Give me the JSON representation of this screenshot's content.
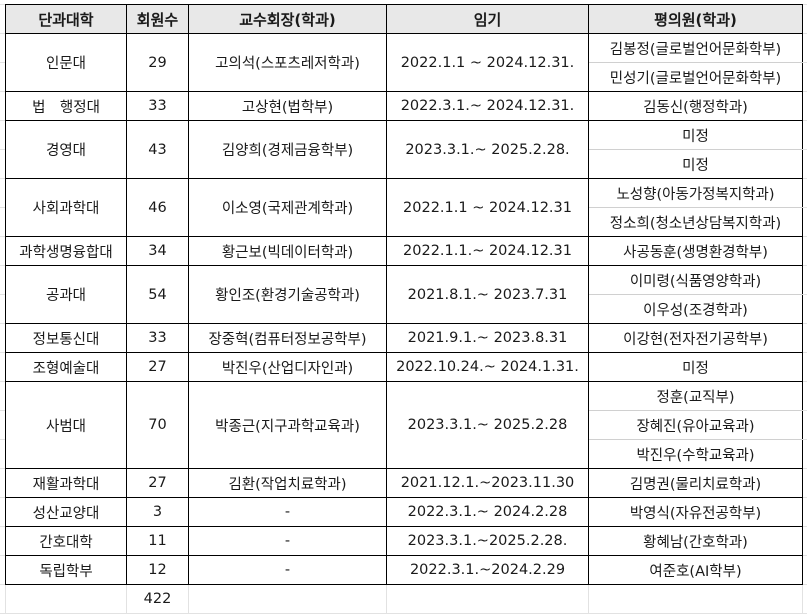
{
  "headers": [
    "단과대학",
    "회원수",
    "교수회장(학과)",
    "임기",
    "평의원(학과)"
  ],
  "rows": [
    {
      "college": "인문대",
      "members": "29",
      "president": "고의석(스포츠레저학과)",
      "term": "2022.1.1 ~ 2024.12.31.",
      "reps": [
        "김봉정(글로벌언어문화학부)",
        "민성기(글로벌언어문화학부)"
      ]
    },
    {
      "college": "법　행정대",
      "members": "33",
      "president": "고상현(법학부)",
      "term": "2022.3.1.~ 2024.12.31.",
      "reps": [
        "김동신(행정학과)"
      ]
    },
    {
      "college": "경영대",
      "members": "43",
      "president": "김양희(경제금융학부)",
      "term": "2023.3.1.~ 2025.2.28.",
      "reps": [
        "미정",
        "미정"
      ]
    },
    {
      "college": "사회과학대",
      "members": "46",
      "president": "이소영(국제관계학과)",
      "term": "2022.1.1 ~ 2024.12.31",
      "reps": [
        "노성향(아동가정복지학과)",
        "정소희(청소년상담복지학과)"
      ]
    },
    {
      "college": "과학생명융합대",
      "members": "34",
      "president": "황근보(빅데이터학과)",
      "term": "2022.1.1.~ 2024.12.31",
      "reps": [
        "사공동훈(생명환경학부)"
      ]
    },
    {
      "college": "공과대",
      "members": "54",
      "president": "황인조(환경기술공학과)",
      "term": "2021.8.1.~ 2023.7.31",
      "reps": [
        "이미령(식품영양학과)",
        "이우성(조경학과)"
      ]
    },
    {
      "college": "정보통신대",
      "members": "33",
      "president": "장중혁(컴퓨터정보공학부)",
      "term": "2021.9.1.~ 2023.8.31",
      "reps": [
        "이강현(전자전기공학부)"
      ]
    },
    {
      "college": "조형예술대",
      "members": "27",
      "president": "박진우(산업디자인과)",
      "term": "2022.10.24.~ 2024.1.31.",
      "reps": [
        "미정"
      ]
    },
    {
      "college": "사범대",
      "members": "70",
      "president": "박종근(지구과학교육과)",
      "term": "2023.3.1.~ 2025.2.28",
      "reps": [
        "정훈(교직부)",
        "장혜진(유아교육과)",
        "박진우(수학교육과)"
      ]
    },
    {
      "college": "재활과학대",
      "members": "27",
      "president": "김환(작업치료학과)",
      "term": "2021.12.1.~2023.11.30",
      "reps": [
        "김명권(물리치료학과)"
      ]
    },
    {
      "college": "성산교양대",
      "members": "3",
      "president": "-",
      "term": "2022.3.1.~ 2024.2.28",
      "reps": [
        "박영식(자유전공학부)"
      ]
    },
    {
      "college": "간호대학",
      "members": "11",
      "president": "-",
      "term": "2023.3.1.~2025.2.28.",
      "reps": [
        "황혜남(간호학과)"
      ]
    },
    {
      "college": "독립학부",
      "members": "12",
      "president": "-",
      "term": "2022.3.1.~2024.2.29",
      "reps": [
        "여준호(AI학부)"
      ]
    }
  ],
  "total": "422"
}
